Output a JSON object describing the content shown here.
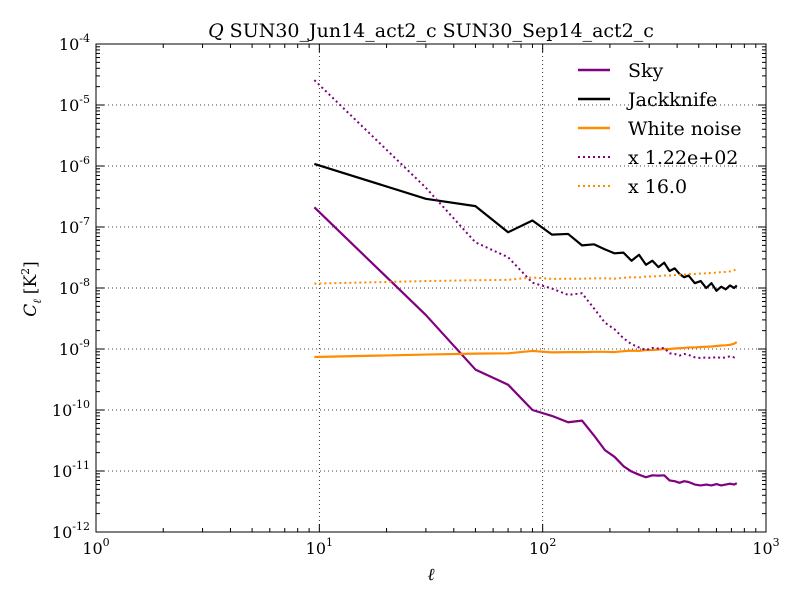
{
  "chart_data": {
    "type": "line",
    "title": "SUN30_Jun14_act2_c SUN30_Sep14_act2_c",
    "title_prefix": "Q",
    "xlabel": "ℓ",
    "ylabel": "C",
    "ylabel_subscript": "ℓ",
    "ylabel_unit": "[K",
    "ylabel_unit_sup": "2",
    "ylabel_unit_close": "]",
    "xscale": "log",
    "yscale": "log",
    "xlim": [
      1,
      1000
    ],
    "ylim": [
      1e-12,
      0.0001
    ],
    "grid": true,
    "legend_position": "top-right",
    "x_ticks": [
      {
        "value": 1,
        "base": "10",
        "exp": "0"
      },
      {
        "value": 10,
        "base": "10",
        "exp": "1"
      },
      {
        "value": 100,
        "base": "10",
        "exp": "2"
      },
      {
        "value": 1000,
        "base": "10",
        "exp": "3"
      }
    ],
    "y_ticks": [
      {
        "value": 1e-12,
        "base": "10",
        "exp": "-12"
      },
      {
        "value": 1e-11,
        "base": "10",
        "exp": "-11"
      },
      {
        "value": 1e-10,
        "base": "10",
        "exp": "-10"
      },
      {
        "value": 1e-09,
        "base": "10",
        "exp": "-9"
      },
      {
        "value": 1e-08,
        "base": "10",
        "exp": "-8"
      },
      {
        "value": 1e-07,
        "base": "10",
        "exp": "-7"
      },
      {
        "value": 1e-06,
        "base": "10",
        "exp": "-6"
      },
      {
        "value": 1e-05,
        "base": "10",
        "exp": "-5"
      },
      {
        "value": 0.0001,
        "base": "10",
        "exp": "-4"
      }
    ],
    "series": [
      {
        "name": "Sky",
        "color": "#800080",
        "style": "solid",
        "x": [
          9.5,
          30,
          50,
          70,
          90,
          110,
          130,
          150,
          170,
          190,
          210,
          230,
          250,
          270,
          290,
          310,
          330,
          350,
          370,
          390,
          410,
          430,
          450,
          480,
          510,
          540,
          570,
          600,
          630,
          660,
          690,
          720,
          740
        ],
        "y": [
          2.1e-07,
          3.6e-09,
          4.6e-10,
          2.6e-10,
          1e-10,
          8e-11,
          6.3e-11,
          6.7e-11,
          3.8e-11,
          2.2e-11,
          1.7e-11,
          1.2e-11,
          9.8e-12,
          8.7e-12,
          7.9e-12,
          8.5e-12,
          8.4e-12,
          8.5e-12,
          7e-12,
          6.8e-12,
          6.4e-12,
          6.8e-12,
          6.6e-12,
          6e-12,
          5.8e-12,
          6e-12,
          5.8e-12,
          6.1e-12,
          5.8e-12,
          6e-12,
          6.2e-12,
          6e-12,
          6.3e-12
        ]
      },
      {
        "name": "Jackknife",
        "color": "#000000",
        "style": "solid",
        "x": [
          9.5,
          30,
          50,
          70,
          90,
          110,
          130,
          150,
          170,
          190,
          210,
          230,
          250,
          270,
          290,
          310,
          330,
          350,
          370,
          390,
          410,
          430,
          450,
          480,
          510,
          540,
          570,
          600,
          630,
          660,
          690,
          720,
          740
        ],
        "y": [
          1.08e-06,
          2.9e-07,
          2.2e-07,
          8.2e-08,
          1.28e-07,
          7.5e-08,
          7.7e-08,
          5e-08,
          5.2e-08,
          4.3e-08,
          3.7e-08,
          3.8e-08,
          2.8e-08,
          3.5e-08,
          2.4e-08,
          2.8e-08,
          2.2e-08,
          2.6e-08,
          1.9e-08,
          2.1e-08,
          1.7e-08,
          1.5e-08,
          1.6e-08,
          1.2e-08,
          1.3e-08,
          1e-08,
          1.2e-08,
          9e-09,
          1.05e-08,
          9.5e-09,
          1.1e-08,
          1e-08,
          1.1e-08
        ]
      },
      {
        "name": "White noise",
        "color": "#ff8c00",
        "style": "solid",
        "x": [
          9.5,
          30,
          50,
          70,
          90,
          110,
          130,
          150,
          170,
          190,
          210,
          230,
          250,
          270,
          290,
          310,
          330,
          350,
          370,
          390,
          410,
          430,
          450,
          480,
          510,
          540,
          570,
          600,
          630,
          660,
          690,
          720,
          740
        ],
        "y": [
          7.4e-10,
          8.1e-10,
          8.4e-10,
          8.5e-10,
          9.3e-10,
          8.8e-10,
          8.9e-10,
          8.9e-10,
          9e-10,
          9e-10,
          8.9e-10,
          9.2e-10,
          9.4e-10,
          9.3e-10,
          9.6e-10,
          9.6e-10,
          9.8e-10,
          1e-09,
          1e-09,
          1.02e-09,
          1.03e-09,
          1.04e-09,
          1.06e-09,
          1.06e-09,
          1.08e-09,
          1.09e-09,
          1.1e-09,
          1.12e-09,
          1.14e-09,
          1.15e-09,
          1.17e-09,
          1.22e-09,
          1.3e-09
        ]
      },
      {
        "name": "x 1.22e+02",
        "color": "#800080",
        "style": "dotted",
        "x": [
          9.5,
          30,
          50,
          70,
          90,
          110,
          130,
          150,
          170,
          190,
          210,
          230,
          250,
          270,
          290,
          310,
          330,
          350,
          370,
          390,
          410,
          430,
          450,
          480,
          510,
          540,
          570,
          600,
          630,
          660,
          690,
          720,
          740
        ],
        "y": [
          2.56e-05,
          4.4e-07,
          5.6e-08,
          3.2e-08,
          1.22e-08,
          9.8e-09,
          7.7e-09,
          8.2e-09,
          4.6e-09,
          2.7e-09,
          2.1e-09,
          1.5e-09,
          1.2e-09,
          1.06e-09,
          9.6e-10,
          1.04e-09,
          1.02e-09,
          1.04e-09,
          8.5e-10,
          8.3e-10,
          7.8e-10,
          8.3e-10,
          8e-10,
          7.3e-10,
          7.1e-10,
          7.3e-10,
          7.1e-10,
          7.4e-10,
          7.1e-10,
          7.3e-10,
          7.6e-10,
          7.3e-10,
          7.7e-10
        ]
      },
      {
        "name": "x 16.0",
        "color": "#ff8c00",
        "style": "dotted",
        "x": [
          9.5,
          30,
          50,
          70,
          90,
          110,
          130,
          150,
          170,
          190,
          210,
          230,
          250,
          270,
          290,
          310,
          330,
          350,
          370,
          390,
          410,
          430,
          450,
          480,
          510,
          540,
          570,
          600,
          630,
          660,
          690,
          720,
          740
        ],
        "y": [
          1.18e-08,
          1.3e-08,
          1.34e-08,
          1.36e-08,
          1.49e-08,
          1.41e-08,
          1.42e-08,
          1.42e-08,
          1.44e-08,
          1.44e-08,
          1.42e-08,
          1.47e-08,
          1.5e-08,
          1.49e-08,
          1.54e-08,
          1.54e-08,
          1.57e-08,
          1.6e-08,
          1.6e-08,
          1.63e-08,
          1.65e-08,
          1.66e-08,
          1.7e-08,
          1.7e-08,
          1.73e-08,
          1.74e-08,
          1.76e-08,
          1.79e-08,
          1.82e-08,
          1.84e-08,
          1.87e-08,
          1.95e-08,
          2.08e-08
        ]
      }
    ]
  }
}
